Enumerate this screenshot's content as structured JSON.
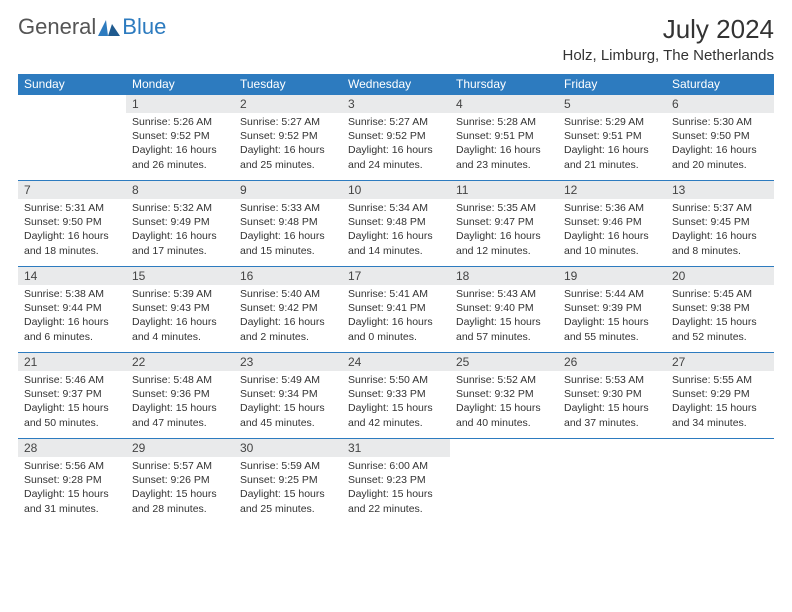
{
  "brand": {
    "general": "General",
    "blue": "Blue"
  },
  "colors": {
    "header_bg": "#2d7bbf",
    "header_text": "#ffffff",
    "daynum_bg": "#e9eaeb",
    "border": "#2d7bbf",
    "text": "#333333",
    "page_bg": "#ffffff"
  },
  "title": "July 2024",
  "location": "Holz, Limburg, The Netherlands",
  "weekdays": [
    "Sunday",
    "Monday",
    "Tuesday",
    "Wednesday",
    "Thursday",
    "Friday",
    "Saturday"
  ],
  "weeks": [
    [
      {
        "blank": true
      },
      {
        "d": "1",
        "sr": "Sunrise: 5:26 AM",
        "ss": "Sunset: 9:52 PM",
        "dl1": "Daylight: 16 hours",
        "dl2": "and 26 minutes."
      },
      {
        "d": "2",
        "sr": "Sunrise: 5:27 AM",
        "ss": "Sunset: 9:52 PM",
        "dl1": "Daylight: 16 hours",
        "dl2": "and 25 minutes."
      },
      {
        "d": "3",
        "sr": "Sunrise: 5:27 AM",
        "ss": "Sunset: 9:52 PM",
        "dl1": "Daylight: 16 hours",
        "dl2": "and 24 minutes."
      },
      {
        "d": "4",
        "sr": "Sunrise: 5:28 AM",
        "ss": "Sunset: 9:51 PM",
        "dl1": "Daylight: 16 hours",
        "dl2": "and 23 minutes."
      },
      {
        "d": "5",
        "sr": "Sunrise: 5:29 AM",
        "ss": "Sunset: 9:51 PM",
        "dl1": "Daylight: 16 hours",
        "dl2": "and 21 minutes."
      },
      {
        "d": "6",
        "sr": "Sunrise: 5:30 AM",
        "ss": "Sunset: 9:50 PM",
        "dl1": "Daylight: 16 hours",
        "dl2": "and 20 minutes."
      }
    ],
    [
      {
        "d": "7",
        "sr": "Sunrise: 5:31 AM",
        "ss": "Sunset: 9:50 PM",
        "dl1": "Daylight: 16 hours",
        "dl2": "and 18 minutes."
      },
      {
        "d": "8",
        "sr": "Sunrise: 5:32 AM",
        "ss": "Sunset: 9:49 PM",
        "dl1": "Daylight: 16 hours",
        "dl2": "and 17 minutes."
      },
      {
        "d": "9",
        "sr": "Sunrise: 5:33 AM",
        "ss": "Sunset: 9:48 PM",
        "dl1": "Daylight: 16 hours",
        "dl2": "and 15 minutes."
      },
      {
        "d": "10",
        "sr": "Sunrise: 5:34 AM",
        "ss": "Sunset: 9:48 PM",
        "dl1": "Daylight: 16 hours",
        "dl2": "and 14 minutes."
      },
      {
        "d": "11",
        "sr": "Sunrise: 5:35 AM",
        "ss": "Sunset: 9:47 PM",
        "dl1": "Daylight: 16 hours",
        "dl2": "and 12 minutes."
      },
      {
        "d": "12",
        "sr": "Sunrise: 5:36 AM",
        "ss": "Sunset: 9:46 PM",
        "dl1": "Daylight: 16 hours",
        "dl2": "and 10 minutes."
      },
      {
        "d": "13",
        "sr": "Sunrise: 5:37 AM",
        "ss": "Sunset: 9:45 PM",
        "dl1": "Daylight: 16 hours",
        "dl2": "and 8 minutes."
      }
    ],
    [
      {
        "d": "14",
        "sr": "Sunrise: 5:38 AM",
        "ss": "Sunset: 9:44 PM",
        "dl1": "Daylight: 16 hours",
        "dl2": "and 6 minutes."
      },
      {
        "d": "15",
        "sr": "Sunrise: 5:39 AM",
        "ss": "Sunset: 9:43 PM",
        "dl1": "Daylight: 16 hours",
        "dl2": "and 4 minutes."
      },
      {
        "d": "16",
        "sr": "Sunrise: 5:40 AM",
        "ss": "Sunset: 9:42 PM",
        "dl1": "Daylight: 16 hours",
        "dl2": "and 2 minutes."
      },
      {
        "d": "17",
        "sr": "Sunrise: 5:41 AM",
        "ss": "Sunset: 9:41 PM",
        "dl1": "Daylight: 16 hours",
        "dl2": "and 0 minutes."
      },
      {
        "d": "18",
        "sr": "Sunrise: 5:43 AM",
        "ss": "Sunset: 9:40 PM",
        "dl1": "Daylight: 15 hours",
        "dl2": "and 57 minutes."
      },
      {
        "d": "19",
        "sr": "Sunrise: 5:44 AM",
        "ss": "Sunset: 9:39 PM",
        "dl1": "Daylight: 15 hours",
        "dl2": "and 55 minutes."
      },
      {
        "d": "20",
        "sr": "Sunrise: 5:45 AM",
        "ss": "Sunset: 9:38 PM",
        "dl1": "Daylight: 15 hours",
        "dl2": "and 52 minutes."
      }
    ],
    [
      {
        "d": "21",
        "sr": "Sunrise: 5:46 AM",
        "ss": "Sunset: 9:37 PM",
        "dl1": "Daylight: 15 hours",
        "dl2": "and 50 minutes."
      },
      {
        "d": "22",
        "sr": "Sunrise: 5:48 AM",
        "ss": "Sunset: 9:36 PM",
        "dl1": "Daylight: 15 hours",
        "dl2": "and 47 minutes."
      },
      {
        "d": "23",
        "sr": "Sunrise: 5:49 AM",
        "ss": "Sunset: 9:34 PM",
        "dl1": "Daylight: 15 hours",
        "dl2": "and 45 minutes."
      },
      {
        "d": "24",
        "sr": "Sunrise: 5:50 AM",
        "ss": "Sunset: 9:33 PM",
        "dl1": "Daylight: 15 hours",
        "dl2": "and 42 minutes."
      },
      {
        "d": "25",
        "sr": "Sunrise: 5:52 AM",
        "ss": "Sunset: 9:32 PM",
        "dl1": "Daylight: 15 hours",
        "dl2": "and 40 minutes."
      },
      {
        "d": "26",
        "sr": "Sunrise: 5:53 AM",
        "ss": "Sunset: 9:30 PM",
        "dl1": "Daylight: 15 hours",
        "dl2": "and 37 minutes."
      },
      {
        "d": "27",
        "sr": "Sunrise: 5:55 AM",
        "ss": "Sunset: 9:29 PM",
        "dl1": "Daylight: 15 hours",
        "dl2": "and 34 minutes."
      }
    ],
    [
      {
        "d": "28",
        "sr": "Sunrise: 5:56 AM",
        "ss": "Sunset: 9:28 PM",
        "dl1": "Daylight: 15 hours",
        "dl2": "and 31 minutes."
      },
      {
        "d": "29",
        "sr": "Sunrise: 5:57 AM",
        "ss": "Sunset: 9:26 PM",
        "dl1": "Daylight: 15 hours",
        "dl2": "and 28 minutes."
      },
      {
        "d": "30",
        "sr": "Sunrise: 5:59 AM",
        "ss": "Sunset: 9:25 PM",
        "dl1": "Daylight: 15 hours",
        "dl2": "and 25 minutes."
      },
      {
        "d": "31",
        "sr": "Sunrise: 6:00 AM",
        "ss": "Sunset: 9:23 PM",
        "dl1": "Daylight: 15 hours",
        "dl2": "and 22 minutes."
      },
      {
        "blank": true
      },
      {
        "blank": true
      },
      {
        "blank": true
      }
    ]
  ]
}
